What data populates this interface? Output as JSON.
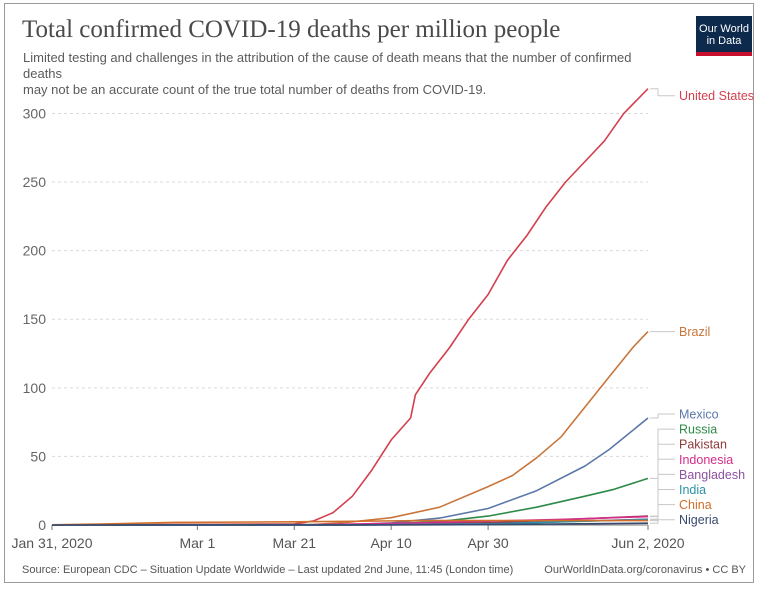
{
  "header": {
    "title": "Total confirmed COVID-19 deaths per million people",
    "subtitle_line1": "Limited testing and challenges in the attribution of the cause of death means that the number of confirmed deaths",
    "subtitle_line2": "may not be an accurate count of the true total number of deaths from COVID-19."
  },
  "logo": {
    "line1": "Our World",
    "line2": "in Data",
    "bg_color": "#0d2a4c",
    "accent_color": "#c8102e"
  },
  "footer": {
    "source": "Source: European CDC – Situation Update Worldwide – Last updated 2nd June, 11:45 (London time)",
    "credit": "OurWorldInData.org/coronavirus • CC BY"
  },
  "chart_data": {
    "type": "line",
    "xlabel": "",
    "ylabel": "",
    "x_range": [
      "2020-01-31",
      "2020-06-02"
    ],
    "ylim": [
      0,
      320
    ],
    "y_ticks": [
      0,
      50,
      100,
      150,
      200,
      250,
      300
    ],
    "x_ticks": [
      {
        "date": "2020-01-31",
        "label": "Jan 31, 2020"
      },
      {
        "date": "2020-03-01",
        "label": "Mar 1"
      },
      {
        "date": "2020-03-21",
        "label": "Mar 21"
      },
      {
        "date": "2020-04-10",
        "label": "Apr 10"
      },
      {
        "date": "2020-04-30",
        "label": "Apr 30"
      },
      {
        "date": "2020-06-02",
        "label": "Jun 2, 2020"
      }
    ],
    "grid": "horizontal dashed",
    "legend": "right, labels at line ends",
    "series": [
      {
        "name": "United States",
        "color": "#d33f4e",
        "points": [
          [
            "2020-01-31",
            0
          ],
          [
            "2020-03-21",
            0.8
          ],
          [
            "2020-03-25",
            3
          ],
          [
            "2020-03-29",
            9
          ],
          [
            "2020-04-02",
            21
          ],
          [
            "2020-04-06",
            40
          ],
          [
            "2020-04-10",
            62
          ],
          [
            "2020-04-14",
            78
          ],
          [
            "2020-04-15",
            95
          ],
          [
            "2020-04-18",
            111
          ],
          [
            "2020-04-22",
            129
          ],
          [
            "2020-04-26",
            150
          ],
          [
            "2020-04-30",
            168
          ],
          [
            "2020-05-04",
            193
          ],
          [
            "2020-05-08",
            211
          ],
          [
            "2020-05-12",
            232
          ],
          [
            "2020-05-16",
            250
          ],
          [
            "2020-05-20",
            265
          ],
          [
            "2020-05-24",
            280
          ],
          [
            "2020-05-28",
            300
          ],
          [
            "2020-06-02",
            318
          ]
        ]
      },
      {
        "name": "Brazil",
        "color": "#c8763a",
        "points": [
          [
            "2020-01-31",
            0
          ],
          [
            "2020-03-25",
            0.4
          ],
          [
            "2020-04-01",
            2
          ],
          [
            "2020-04-10",
            5.3
          ],
          [
            "2020-04-20",
            13
          ],
          [
            "2020-04-30",
            28
          ],
          [
            "2020-05-05",
            36
          ],
          [
            "2020-05-10",
            49
          ],
          [
            "2020-05-15",
            64
          ],
          [
            "2020-05-20",
            86
          ],
          [
            "2020-05-25",
            108
          ],
          [
            "2020-05-30",
            130
          ],
          [
            "2020-06-02",
            141
          ]
        ]
      },
      {
        "name": "Mexico",
        "color": "#5a77a8",
        "points": [
          [
            "2020-01-31",
            0
          ],
          [
            "2020-04-01",
            0.2
          ],
          [
            "2020-04-10",
            1.5
          ],
          [
            "2020-04-20",
            5
          ],
          [
            "2020-04-30",
            12
          ],
          [
            "2020-05-10",
            25
          ],
          [
            "2020-05-20",
            43
          ],
          [
            "2020-05-25",
            55
          ],
          [
            "2020-06-02",
            78
          ]
        ]
      },
      {
        "name": "Russia",
        "color": "#2e8a48",
        "points": [
          [
            "2020-01-31",
            0
          ],
          [
            "2020-04-05",
            0.3
          ],
          [
            "2020-04-20",
            2.5
          ],
          [
            "2020-04-30",
            6.5
          ],
          [
            "2020-05-10",
            13
          ],
          [
            "2020-05-20",
            21
          ],
          [
            "2020-05-26",
            26
          ],
          [
            "2020-06-02",
            34
          ]
        ]
      },
      {
        "name": "Pakistan",
        "color": "#8c3a3a",
        "points": [
          [
            "2020-01-31",
            0
          ],
          [
            "2020-04-01",
            0.1
          ],
          [
            "2020-05-01",
            1.7
          ],
          [
            "2020-06-02",
            6.5
          ]
        ]
      },
      {
        "name": "Indonesia",
        "color": "#d42c8a",
        "points": [
          [
            "2020-01-31",
            0
          ],
          [
            "2020-03-25",
            0.2
          ],
          [
            "2020-04-15",
            1.5
          ],
          [
            "2020-05-15",
            4.1
          ],
          [
            "2020-06-02",
            6.1
          ]
        ]
      },
      {
        "name": "Bangladesh",
        "color": "#8e53a0",
        "points": [
          [
            "2020-01-31",
            0
          ],
          [
            "2020-04-05",
            0.1
          ],
          [
            "2020-05-01",
            1
          ],
          [
            "2020-06-02",
            4.2
          ]
        ]
      },
      {
        "name": "India",
        "color": "#2a93a6",
        "points": [
          [
            "2020-01-31",
            0
          ],
          [
            "2020-04-05",
            0.1
          ],
          [
            "2020-05-01",
            0.8
          ],
          [
            "2020-06-02",
            4.1
          ]
        ]
      },
      {
        "name": "China",
        "color": "#d06f2a",
        "points": [
          [
            "2020-01-31",
            0.15
          ],
          [
            "2020-02-10",
            0.7
          ],
          [
            "2020-02-25",
            1.9
          ],
          [
            "2020-03-21",
            2.3
          ],
          [
            "2020-04-17",
            3.2
          ],
          [
            "2020-06-02",
            3.2
          ]
        ]
      },
      {
        "name": "Nigeria",
        "color": "#374a6d",
        "points": [
          [
            "2020-01-31",
            0
          ],
          [
            "2020-04-10",
            0.05
          ],
          [
            "2020-05-01",
            0.3
          ],
          [
            "2020-06-02",
            1.3
          ]
        ]
      }
    ]
  }
}
